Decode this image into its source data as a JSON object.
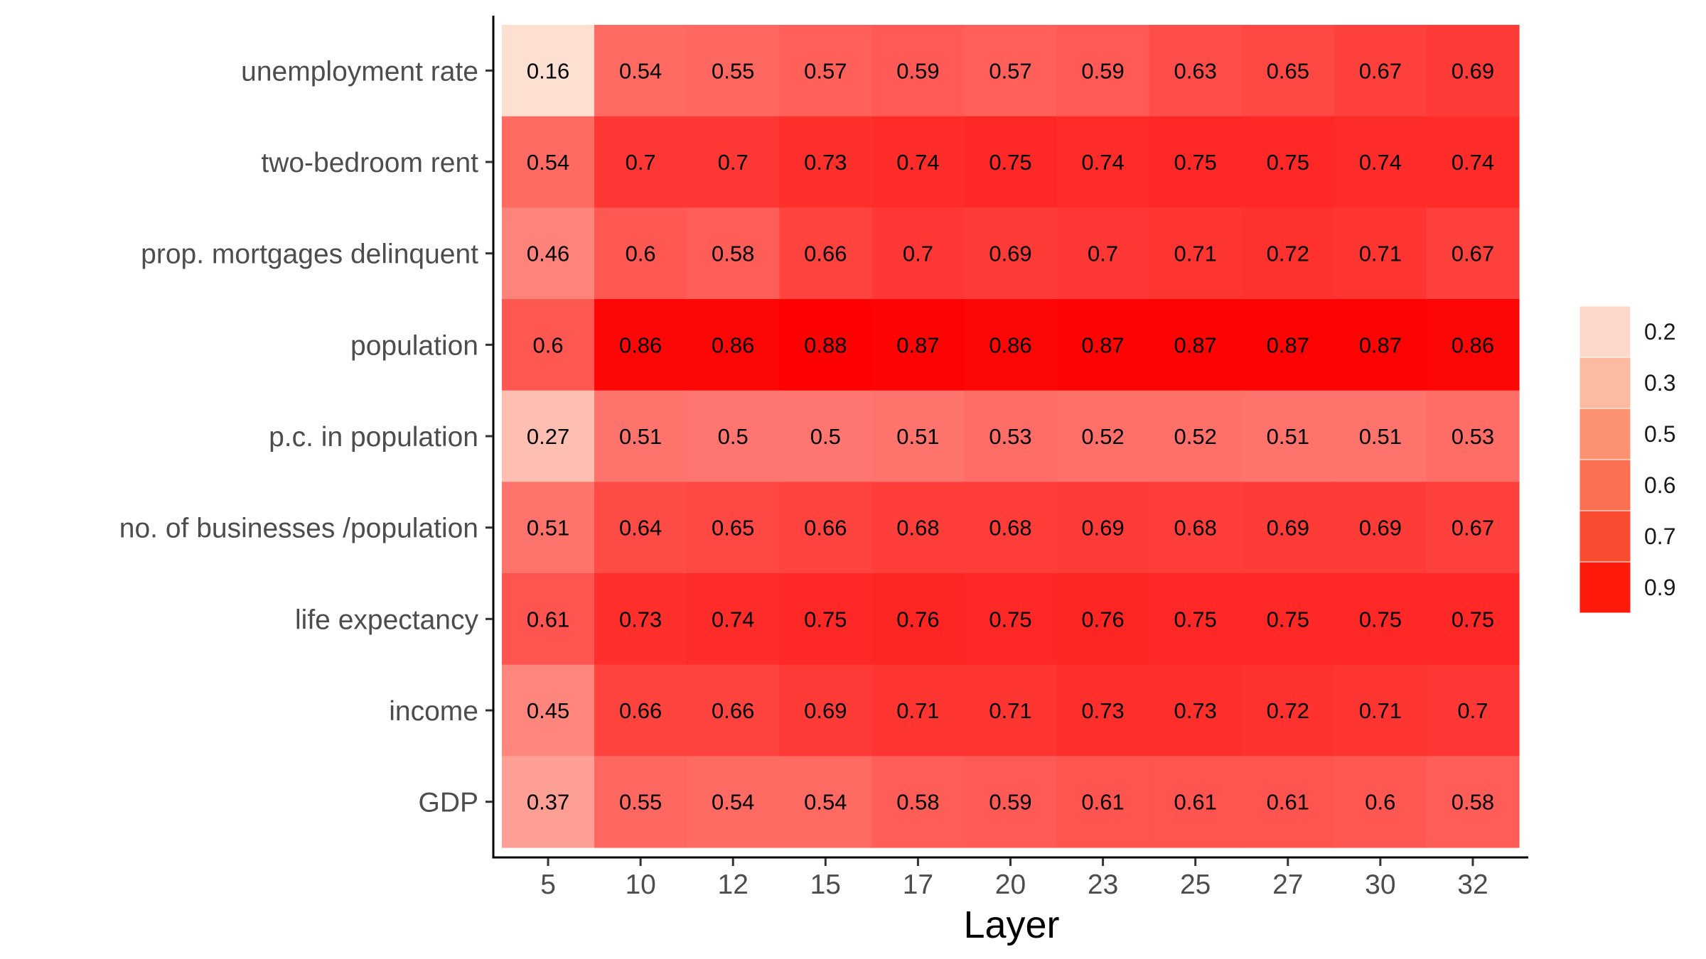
{
  "chart_data": {
    "type": "heatmap",
    "title": "",
    "xlabel": "Layer",
    "ylabel": "",
    "x": [
      "5",
      "10",
      "12",
      "15",
      "17",
      "20",
      "23",
      "25",
      "27",
      "30",
      "32"
    ],
    "y": [
      "unemployment rate",
      "two-bedroom rent",
      "prop. mortgages delinquent",
      "population",
      "p.c. in population",
      "no. of businesses /population",
      "life expectancy",
      "income",
      "GDP"
    ],
    "values": [
      [
        0.16,
        0.54,
        0.55,
        0.57,
        0.59,
        0.57,
        0.59,
        0.63,
        0.65,
        0.67,
        0.69
      ],
      [
        0.54,
        0.7,
        0.7,
        0.73,
        0.74,
        0.75,
        0.74,
        0.75,
        0.75,
        0.74,
        0.74
      ],
      [
        0.46,
        0.6,
        0.58,
        0.66,
        0.7,
        0.69,
        0.7,
        0.71,
        0.72,
        0.71,
        0.67
      ],
      [
        0.6,
        0.86,
        0.86,
        0.88,
        0.87,
        0.86,
        0.87,
        0.87,
        0.87,
        0.87,
        0.86
      ],
      [
        0.27,
        0.51,
        0.5,
        0.5,
        0.51,
        0.53,
        0.52,
        0.52,
        0.51,
        0.51,
        0.53
      ],
      [
        0.51,
        0.64,
        0.65,
        0.66,
        0.68,
        0.68,
        0.69,
        0.68,
        0.69,
        0.69,
        0.67
      ],
      [
        0.61,
        0.73,
        0.74,
        0.75,
        0.76,
        0.75,
        0.76,
        0.75,
        0.75,
        0.75,
        0.75
      ],
      [
        0.45,
        0.66,
        0.66,
        0.69,
        0.71,
        0.71,
        0.73,
        0.73,
        0.72,
        0.71,
        0.7
      ],
      [
        0.37,
        0.55,
        0.54,
        0.54,
        0.58,
        0.59,
        0.61,
        0.61,
        0.61,
        0.6,
        0.58
      ]
    ],
    "labels": [
      [
        "0.16",
        "0.54",
        "0.55",
        "0.57",
        "0.59",
        "0.57",
        "0.59",
        "0.63",
        "0.65",
        "0.67",
        "0.69"
      ],
      [
        "0.54",
        "0.7",
        "0.7",
        "0.73",
        "0.74",
        "0.75",
        "0.74",
        "0.75",
        "0.75",
        "0.74",
        "0.74"
      ],
      [
        "0.46",
        "0.6",
        "0.58",
        "0.66",
        "0.7",
        "0.69",
        "0.7",
        "0.71",
        "0.72",
        "0.71",
        "0.67"
      ],
      [
        "0.6",
        "0.86",
        "0.86",
        "0.88",
        "0.87",
        "0.86",
        "0.87",
        "0.87",
        "0.87",
        "0.87",
        "0.86"
      ],
      [
        "0.27",
        "0.51",
        "0.5",
        "0.5",
        "0.51",
        "0.53",
        "0.52",
        "0.52",
        "0.51",
        "0.51",
        "0.53"
      ],
      [
        "0.51",
        "0.64",
        "0.65",
        "0.66",
        "0.68",
        "0.68",
        "0.69",
        "0.68",
        "0.69",
        "0.69",
        "0.67"
      ],
      [
        "0.61",
        "0.73",
        "0.74",
        "0.75",
        "0.76",
        "0.75",
        "0.76",
        "0.75",
        "0.75",
        "0.75",
        "0.75"
      ],
      [
        "0.45",
        "0.66",
        "0.66",
        "0.69",
        "0.71",
        "0.71",
        "0.73",
        "0.73",
        "0.72",
        "0.71",
        "0.7"
      ],
      [
        "0.37",
        "0.55",
        "0.54",
        "0.54",
        "0.58",
        "0.59",
        "0.61",
        "0.61",
        "0.61",
        "0.6",
        "0.58"
      ]
    ],
    "color_scale": {
      "low_color": "#FEE0D2",
      "high_color": "#FF0000",
      "domain": [
        0.16,
        0.88
      ]
    },
    "legend": {
      "position": "right",
      "ticks": [
        "0.2",
        "0.3",
        "0.5",
        "0.6",
        "0.7",
        "0.9"
      ],
      "colors": [
        "#FDD8CB",
        "#FCBBA1",
        "#FC9272",
        "#FB7050",
        "#FB4B30",
        "#FF1A0C"
      ]
    },
    "grid": false
  }
}
